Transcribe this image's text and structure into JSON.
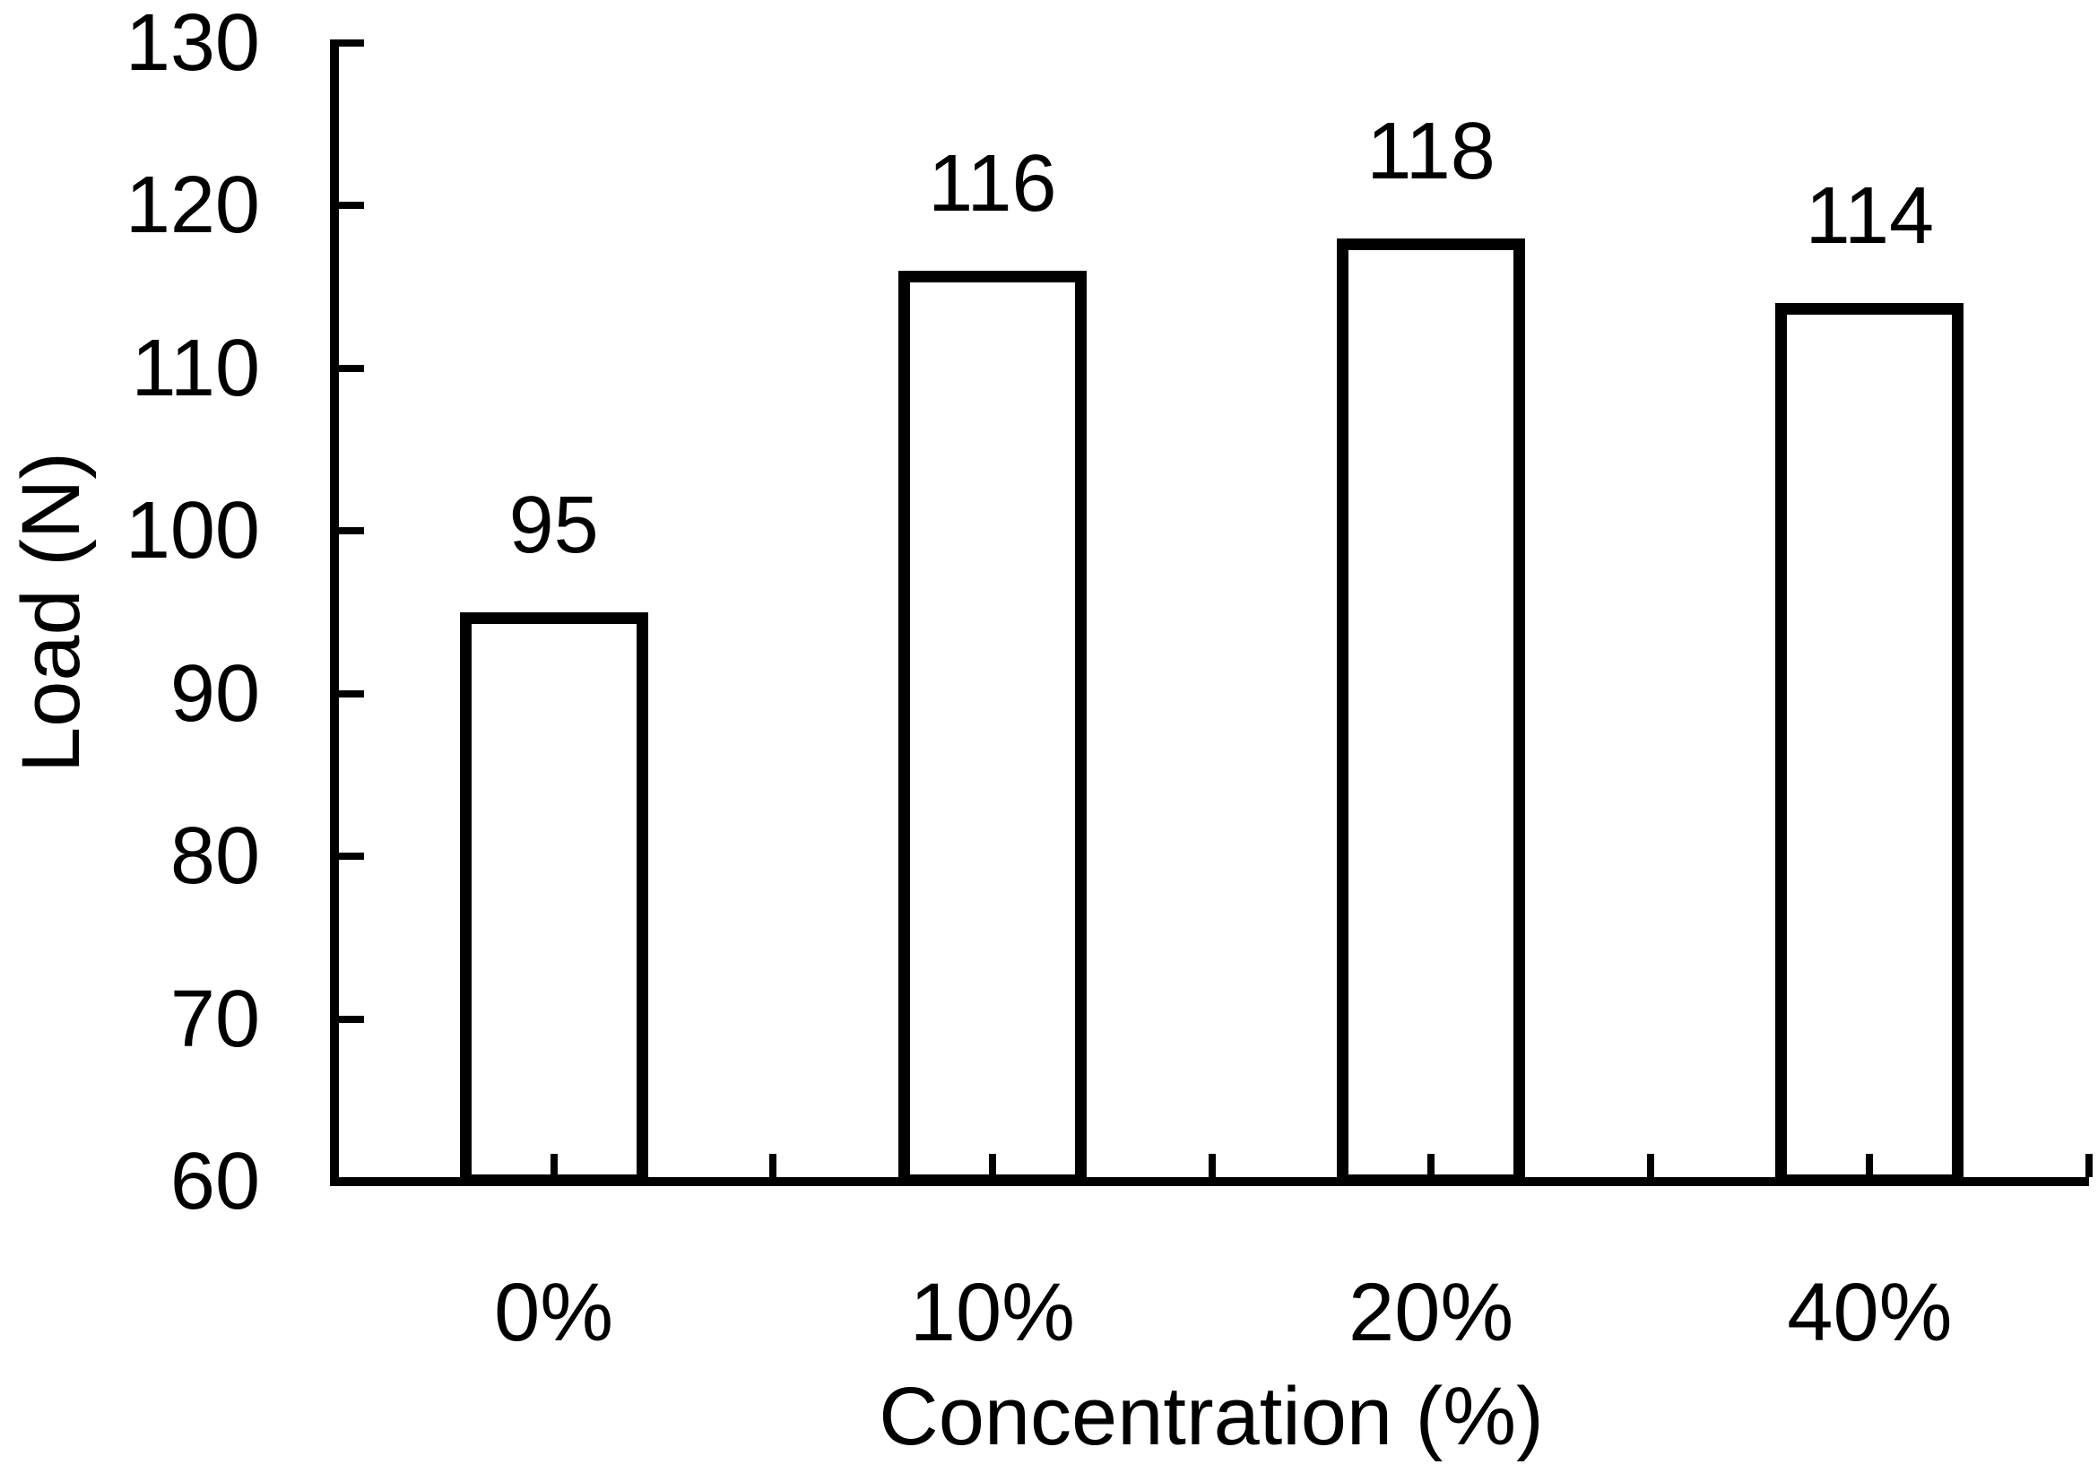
{
  "chart_data": {
    "type": "bar",
    "title": "",
    "categories": [
      "0%",
      "10%",
      "20%",
      "40%"
    ],
    "values": [
      95,
      116,
      118,
      114
    ],
    "bar_labels": [
      "95",
      "116",
      "118",
      "114"
    ],
    "xlabel": "Concentration (%)",
    "ylabel": "Load (N)",
    "ylim": [
      60,
      130
    ],
    "yticks": [
      60,
      70,
      80,
      90,
      100,
      110,
      120,
      130
    ],
    "ytick_labels": [
      "60",
      "70",
      "80",
      "90",
      "100",
      "110",
      "120",
      "130"
    ],
    "grid": false,
    "legend": false,
    "bar_fill": "#ffffff",
    "bar_border": "#000000",
    "axis_color": "#000000",
    "text_color": "#000000",
    "background": "#ffffff"
  }
}
